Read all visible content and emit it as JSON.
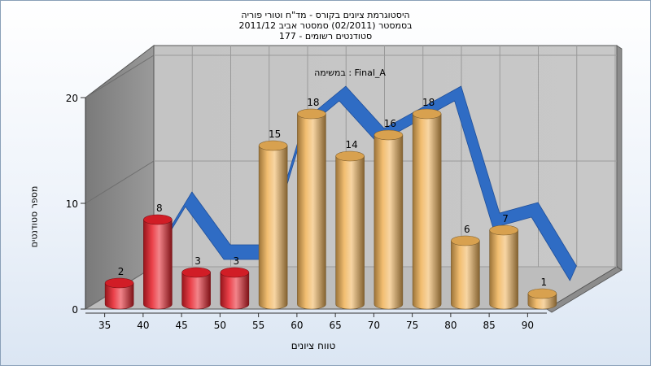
{
  "chart_data": {
    "type": "bar",
    "title_lines": [
      "היסטוגרמת ציונים בקורס - מד\"ח וטורי פוריה",
      "בסמסטר  (02/2011)  סמסטר אביב 2011/12",
      "סטודנטים רשומים - 177"
    ],
    "annotation": "במשימה : Final_A",
    "xlabel": "טווח ציונים",
    "ylabel": "מספר סטודנטים",
    "ylim": [
      0,
      20
    ],
    "y_ticks": [
      0,
      10,
      20
    ],
    "x_ticks": [
      "35",
      "40",
      "45",
      "50",
      "55",
      "60",
      "65",
      "70",
      "75",
      "80",
      "85",
      "90"
    ],
    "categories": [
      "35-40",
      "40-45",
      "45-50",
      "50-55",
      "55-60",
      "60-65",
      "65-70",
      "70-75",
      "75-80",
      "80-85",
      "85-90",
      "90-95"
    ],
    "values": [
      2,
      8,
      3,
      3,
      15,
      18,
      14,
      16,
      18,
      6,
      7,
      1
    ],
    "data_labels": [
      "2",
      "8",
      "3",
      "3",
      "15",
      "18",
      "14",
      "16",
      "18",
      "6",
      "7",
      "1"
    ],
    "bar_colors": [
      "#e8202a",
      "#e8202a",
      "#e8202a",
      "#e8202a",
      "#f0b358",
      "#f0b358",
      "#f0b358",
      "#f0b358",
      "#f0b358",
      "#f0b358",
      "#f0b358",
      "#f0b358"
    ],
    "ribbon_color": "#2f6cc4",
    "grid": true,
    "legend": "none"
  }
}
